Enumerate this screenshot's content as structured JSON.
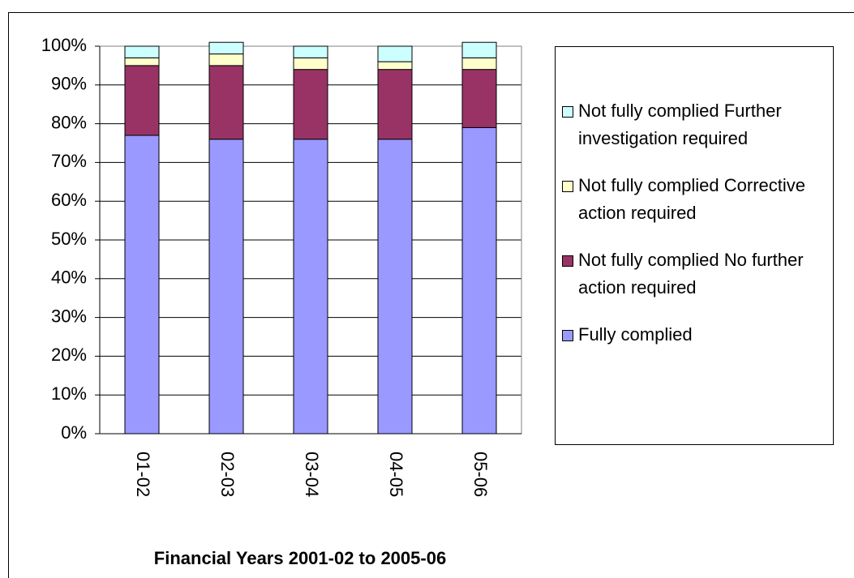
{
  "chart_data": {
    "type": "stacked_bar",
    "x_label": "Financial Years 2001-02 to 2005-06",
    "categories": [
      "01-02",
      "02-03",
      "03-04",
      "04-05",
      "05-06"
    ],
    "series": [
      {
        "name": "Fully complied",
        "color": "#9999ff",
        "values": [
          77,
          76,
          76,
          76,
          79
        ]
      },
      {
        "name": "Not fully complied No further action required",
        "color": "#993366",
        "values": [
          18,
          19,
          18,
          18,
          15
        ]
      },
      {
        "name": "Not fully complied Corrective action required",
        "color": "#ffffcc",
        "values": [
          2,
          3,
          3,
          2,
          3
        ]
      },
      {
        "name": "Not fully complied Further investigation required",
        "color": "#ccffff",
        "values": [
          3,
          3,
          3,
          4,
          4
        ]
      }
    ],
    "ylim": [
      0,
      100
    ],
    "yticks": [
      {
        "value": 0,
        "label": "0%"
      },
      {
        "value": 10,
        "label": "10%"
      },
      {
        "value": 20,
        "label": "20%"
      },
      {
        "value": 30,
        "label": "30%"
      },
      {
        "value": 40,
        "label": "40%"
      },
      {
        "value": 50,
        "label": "50%"
      },
      {
        "value": 60,
        "label": "60%"
      },
      {
        "value": 70,
        "label": "70%"
      },
      {
        "value": 80,
        "label": "80%"
      },
      {
        "value": 90,
        "label": "90%"
      },
      {
        "value": 100,
        "label": "100%"
      }
    ],
    "grid": true
  }
}
